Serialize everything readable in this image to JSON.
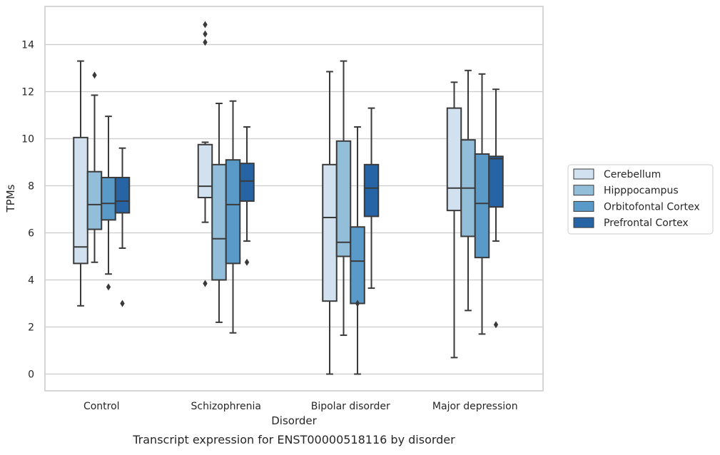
{
  "chart_data": {
    "type": "boxplot",
    "caption": "Transcript expression for ENST00000518116 by disorder",
    "xlabel": "Disorder",
    "ylabel": "TPMs",
    "ylim": [
      -0.7,
      15.5
    ],
    "yticks": [
      0,
      2,
      4,
      6,
      8,
      10,
      12,
      14
    ],
    "grid": "horizontal",
    "legend_position": "right",
    "categories": [
      "Control",
      "Schizophrenia",
      "Bipolar disorder",
      "Major depression"
    ],
    "series": [
      {
        "name": "Cerebellum",
        "color": "#d1e1ef",
        "boxes": [
          {
            "whislo": 2.9,
            "q1": 4.7,
            "med": 5.4,
            "q3": 10.05,
            "whishi": 13.3,
            "fliers": []
          },
          {
            "whislo": 6.45,
            "q1": 7.5,
            "med": 7.98,
            "q3": 9.75,
            "whishi": 9.85,
            "fliers": [
              3.85,
              14.1,
              14.45,
              14.85
            ]
          },
          {
            "whislo": 0.0,
            "q1": 3.1,
            "med": 6.65,
            "q3": 8.9,
            "whishi": 12.85,
            "fliers": []
          },
          {
            "whislo": 0.7,
            "q1": 6.95,
            "med": 7.9,
            "q3": 11.3,
            "whishi": 12.4,
            "fliers": []
          }
        ]
      },
      {
        "name": "Hipppocampus",
        "color": "#93bed9",
        "boxes": [
          {
            "whislo": 4.75,
            "q1": 6.15,
            "med": 7.2,
            "q3": 8.6,
            "whishi": 11.85,
            "fliers": [
              12.7
            ]
          },
          {
            "whislo": 2.2,
            "q1": 4.0,
            "med": 5.75,
            "q3": 8.9,
            "whishi": 11.5,
            "fliers": []
          },
          {
            "whislo": 1.65,
            "q1": 5.0,
            "med": 5.6,
            "q3": 9.9,
            "whishi": 13.3,
            "fliers": []
          },
          {
            "whislo": 2.7,
            "q1": 5.85,
            "med": 7.9,
            "q3": 9.95,
            "whishi": 12.9,
            "fliers": []
          }
        ]
      },
      {
        "name": "Orbitofontal Cortex",
        "color": "#5a9ac8",
        "boxes": [
          {
            "whislo": 4.25,
            "q1": 6.55,
            "med": 7.25,
            "q3": 8.35,
            "whishi": 10.95,
            "fliers": [
              3.7
            ]
          },
          {
            "whislo": 1.75,
            "q1": 4.7,
            "med": 7.2,
            "q3": 9.1,
            "whishi": 11.6,
            "fliers": []
          },
          {
            "whislo": 0.0,
            "q1": 3.0,
            "med": 4.8,
            "q3": 6.25,
            "whishi": 10.5,
            "fliers": [
              3.0
            ]
          },
          {
            "whislo": 1.7,
            "q1": 4.95,
            "med": 7.25,
            "q3": 9.35,
            "whishi": 12.75,
            "fliers": []
          }
        ]
      },
      {
        "name": "Prefrontal Cortex",
        "color": "#2664a6",
        "boxes": [
          {
            "whislo": 5.35,
            "q1": 6.85,
            "med": 7.35,
            "q3": 8.35,
            "whishi": 9.6,
            "fliers": [
              3.0
            ]
          },
          {
            "whislo": 5.65,
            "q1": 7.35,
            "med": 8.2,
            "q3": 8.95,
            "whishi": 10.5,
            "fliers": [
              4.75
            ]
          },
          {
            "whislo": 3.65,
            "q1": 6.7,
            "med": 7.9,
            "q3": 8.9,
            "whishi": 11.3,
            "fliers": []
          },
          {
            "whislo": 5.65,
            "q1": 7.1,
            "med": 9.15,
            "q3": 9.25,
            "whishi": 12.1,
            "fliers": [
              2.1
            ]
          }
        ]
      }
    ]
  }
}
